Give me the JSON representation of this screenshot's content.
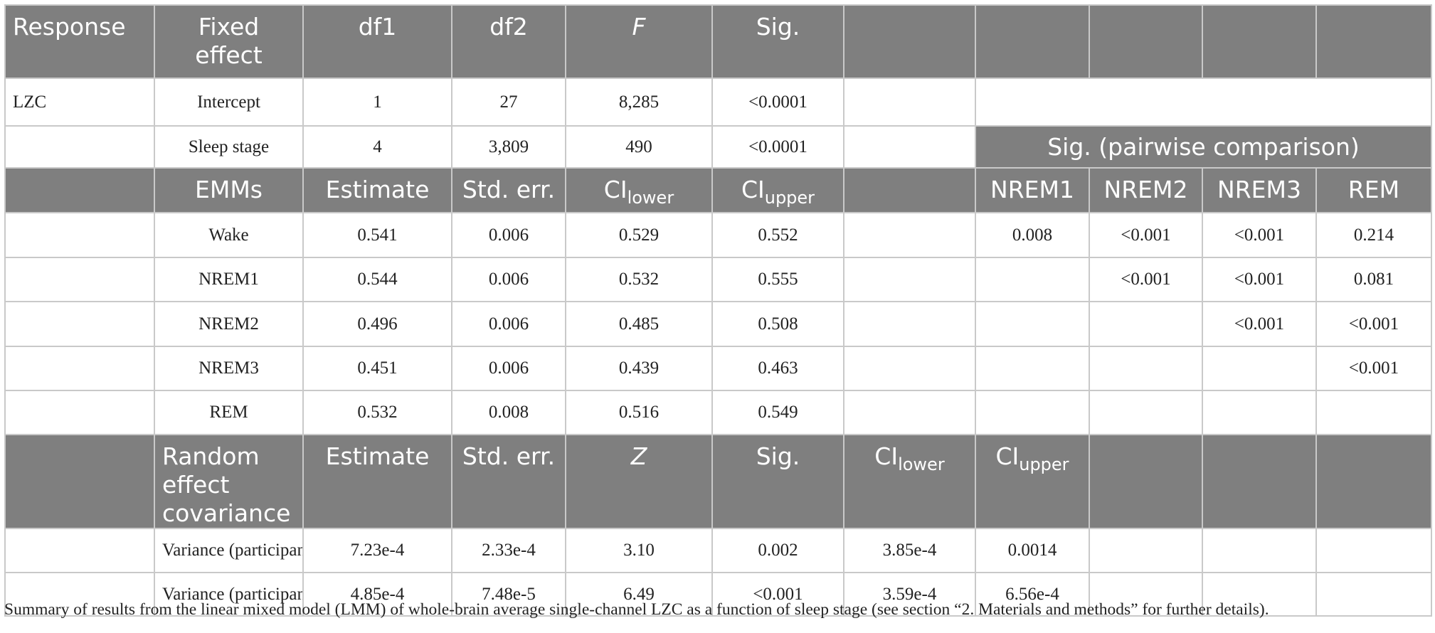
{
  "table": {
    "header": [
      "Response",
      "Fixed effect",
      "df1",
      "df2",
      "F",
      "Sig."
    ],
    "fixed_effects": {
      "response": "LZC",
      "rows": [
        [
          "Intercept",
          "1",
          "27",
          "8,285",
          "<0.0001"
        ],
        [
          "Sleep stage",
          "4",
          "3,809",
          "490",
          "<0.0001"
        ]
      ]
    },
    "pairwise_title": "Sig. (pairwise comparison)",
    "emm_header": [
      "EMMs",
      "Estimate",
      "Std. err.",
      {
        "main": "CI",
        "sub": "lower"
      },
      {
        "main": "CI",
        "sub": "upper"
      }
    ],
    "pairwise_header": [
      "NREM1",
      "NREM2",
      "NREM3",
      "REM"
    ],
    "emm_rows": [
      {
        "stage": "Wake",
        "values": [
          "0.541",
          "0.006",
          "0.529",
          "0.552"
        ],
        "pairwise": [
          "0.008",
          "<0.001",
          "<0.001",
          "0.214"
        ]
      },
      {
        "stage": "NREM1",
        "values": [
          "0.544",
          "0.006",
          "0.532",
          "0.555"
        ],
        "pairwise": [
          "<0.001",
          "<0.001",
          "0.081"
        ]
      },
      {
        "stage": "NREM2",
        "values": [
          "0.496",
          "0.006",
          "0.485",
          "0.508"
        ],
        "pairwise": [
          "<0.001",
          "<0.001"
        ]
      },
      {
        "stage": "NREM3",
        "values": [
          "0.451",
          "0.006",
          "0.439",
          "0.463"
        ],
        "pairwise": [
          "<0.001"
        ]
      },
      {
        "stage": "REM",
        "values": [
          "0.532",
          "0.008",
          "0.516",
          "0.549"
        ],
        "pairwise": []
      }
    ],
    "random_header": [
      "Random effect covariance",
      "Estimate",
      "Std. err.",
      "Z",
      "Sig.",
      {
        "main": "CI",
        "sub": "lower"
      },
      {
        "main": "CI",
        "sub": "upper"
      }
    ],
    "random_rows": [
      [
        "Variance (participant)",
        "7.23e-4",
        "2.33e-4",
        "3.10",
        "0.002",
        "3.85e-4",
        "0.0014"
      ],
      [
        "Variance (participant * trial)",
        "4.85e-4",
        "7.48e-5",
        "6.49",
        "<0.001",
        "3.59e-4",
        "6.56e-4"
      ]
    ],
    "caption": "Summary of results from the linear mixed model (LMM) of whole-brain average single-channel LZC as a function of sleep stage (see section “2. Materials and methods” for further details)."
  }
}
